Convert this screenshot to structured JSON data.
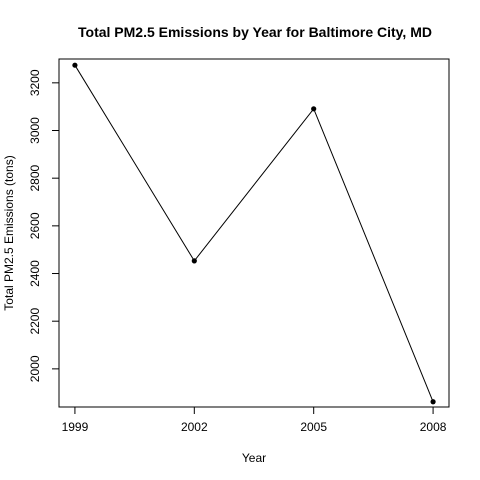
{
  "chart_data": {
    "type": "line",
    "title": "Total PM2.5 Emissions by Year for Baltimore City, MD",
    "xlabel": "Year",
    "ylabel": "Total PM2.5 Emissions (tons)",
    "x": [
      1999,
      2002,
      2005,
      2008
    ],
    "x_tick_labels": [
      "1999",
      "2002",
      "2005",
      "2008"
    ],
    "y_ticks": [
      2000,
      2200,
      2400,
      2600,
      2800,
      3000,
      3200
    ],
    "y_tick_labels": [
      "2000",
      "2200",
      "2400",
      "2600",
      "2800",
      "3000",
      "3200"
    ],
    "xlim": [
      1998.6,
      2008.4
    ],
    "ylim": [
      1840,
      3300
    ],
    "series": [
      {
        "values": [
          3274,
          2453,
          3091,
          1862
        ],
        "color": "#000000",
        "marker": "filled-circle"
      }
    ],
    "grid": false,
    "legend": "none"
  }
}
